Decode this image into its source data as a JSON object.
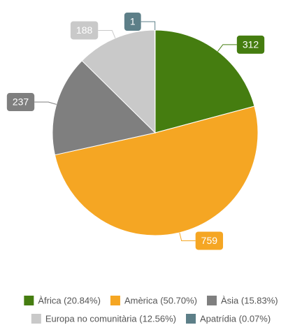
{
  "chart_data": {
    "type": "pie",
    "categories": [
      "Àfrica (20.84%)",
      "Amèrica (50.70%)",
      "Àsia (15.83%)",
      "Europa no comunitària (12.56%)",
      "Apatrídia (0.07%)"
    ],
    "values": [
      312,
      759,
      237,
      188,
      1
    ],
    "colors": [
      "#457d10",
      "#f5a623",
      "#7f7f7f",
      "#c9c9c9",
      "#5d7f88"
    ]
  }
}
